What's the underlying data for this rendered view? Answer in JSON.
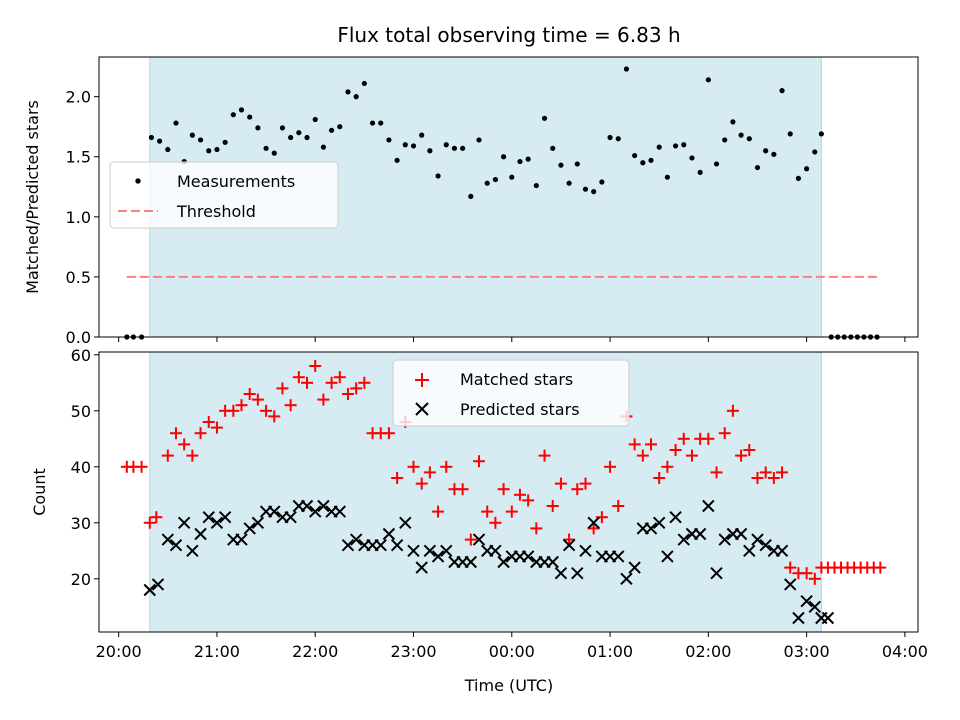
{
  "chart_data": [
    {
      "type": "scatter",
      "title": "Flux total observing time = 6.83 h",
      "xlabel": "",
      "ylabel": "Matched/Predicted stars",
      "xlim": [
        "19:48",
        "04:08"
      ],
      "ylim": [
        0,
        2.33
      ],
      "xticks": [
        "20:00",
        "21:00",
        "22:00",
        "23:00",
        "00:00",
        "01:00",
        "02:00",
        "03:00",
        "04:00"
      ],
      "yticks": [
        "0.0",
        "0.5",
        "1.0",
        "1.5",
        "2.0"
      ],
      "shaded_region": [
        "20:19",
        "03:09"
      ],
      "shade_color": "#add8e6",
      "threshold": {
        "value": 0.5,
        "from": "20:05",
        "to": "03:45",
        "color": "#ff7f7f"
      },
      "legend": {
        "position": "upper-left",
        "entries": [
          "Measurements",
          "Threshold"
        ]
      },
      "series": [
        {
          "name": "Measurements",
          "color": "#000000",
          "x": [
            "20:05",
            "20:09",
            "20:14",
            "20:20",
            "20:25",
            "20:30",
            "20:35",
            "20:40",
            "20:45",
            "20:50",
            "20:55",
            "21:00",
            "21:05",
            "21:10",
            "21:15",
            "21:20",
            "21:25",
            "21:30",
            "21:35",
            "21:40",
            "21:45",
            "21:50",
            "21:55",
            "22:00",
            "22:05",
            "22:10",
            "22:15",
            "22:20",
            "22:25",
            "22:30",
            "22:35",
            "22:40",
            "22:45",
            "22:50",
            "22:55",
            "23:00",
            "23:05",
            "23:10",
            "23:15",
            "23:20",
            "23:25",
            "23:30",
            "23:35",
            "23:40",
            "23:45",
            "23:50",
            "23:55",
            "00:00",
            "00:05",
            "00:10",
            "00:15",
            "00:20",
            "00:25",
            "00:30",
            "00:35",
            "00:40",
            "00:45",
            "00:50",
            "00:55",
            "01:00",
            "01:05",
            "01:10",
            "01:15",
            "01:20",
            "01:25",
            "01:30",
            "01:35",
            "01:40",
            "01:45",
            "01:50",
            "01:55",
            "02:00",
            "02:05",
            "02:10",
            "02:15",
            "02:20",
            "02:25",
            "02:30",
            "02:35",
            "02:40",
            "02:45",
            "02:50",
            "02:55",
            "03:00",
            "03:05",
            "03:09",
            "03:15",
            "03:19",
            "03:23",
            "03:27",
            "03:31",
            "03:35",
            "03:39",
            "03:43"
          ],
          "y": [
            0,
            0,
            0,
            1.66,
            1.63,
            1.56,
            1.78,
            1.46,
            1.68,
            1.64,
            1.55,
            1.56,
            1.62,
            1.85,
            1.89,
            1.83,
            1.74,
            1.57,
            1.53,
            1.74,
            1.66,
            1.7,
            1.66,
            1.81,
            1.58,
            1.72,
            1.75,
            2.04,
            2.0,
            2.11,
            1.78,
            1.78,
            1.64,
            1.47,
            1.6,
            1.59,
            1.68,
            1.55,
            1.34,
            1.6,
            1.57,
            1.57,
            1.17,
            1.64,
            1.28,
            1.31,
            1.5,
            1.33,
            1.46,
            1.48,
            1.26,
            1.82,
            1.57,
            1.43,
            1.28,
            1.44,
            1.23,
            1.21,
            1.29,
            1.66,
            1.65,
            2.23,
            1.51,
            1.45,
            1.47,
            1.58,
            1.33,
            1.59,
            1.6,
            1.49,
            1.37,
            2.14,
            1.44,
            1.64,
            1.79,
            1.68,
            1.65,
            1.41,
            1.55,
            1.52,
            2.05,
            1.69,
            1.32,
            1.4,
            1.54,
            1.69,
            0,
            0,
            0,
            0,
            0,
            0,
            0,
            0
          ]
        }
      ]
    },
    {
      "type": "scatter",
      "title": "",
      "xlabel": "Time (UTC)",
      "ylabel": "Count",
      "xlim": [
        "19:48",
        "04:08"
      ],
      "ylim": [
        10.5,
        60.5
      ],
      "xticks": [
        "20:00",
        "21:00",
        "22:00",
        "23:00",
        "00:00",
        "01:00",
        "02:00",
        "03:00",
        "04:00"
      ],
      "yticks": [
        "20",
        "30",
        "40",
        "50",
        "60"
      ],
      "shaded_region": [
        "20:19",
        "03:09"
      ],
      "shade_color": "#add8e6",
      "legend": {
        "position": "upper-center",
        "entries": [
          "Matched stars",
          "Predicted stars"
        ]
      },
      "series": [
        {
          "name": "Matched stars",
          "marker": "+",
          "color": "#ff0000",
          "x": [
            "20:05",
            "20:09",
            "20:14",
            "20:19",
            "20:23",
            "20:30",
            "20:35",
            "20:40",
            "20:45",
            "20:50",
            "20:55",
            "21:00",
            "21:05",
            "21:10",
            "21:15",
            "21:20",
            "21:25",
            "21:30",
            "21:35",
            "21:40",
            "21:45",
            "21:50",
            "21:55",
            "22:00",
            "22:05",
            "22:10",
            "22:15",
            "22:20",
            "22:25",
            "22:30",
            "22:35",
            "22:40",
            "22:45",
            "22:50",
            "22:55",
            "23:00",
            "23:05",
            "23:10",
            "23:15",
            "23:20",
            "23:25",
            "23:30",
            "23:35",
            "23:40",
            "23:45",
            "23:50",
            "23:55",
            "00:00",
            "00:05",
            "00:10",
            "00:15",
            "00:20",
            "00:25",
            "00:30",
            "00:35",
            "00:40",
            "00:45",
            "00:50",
            "00:55",
            "01:00",
            "01:05",
            "01:10",
            "01:15",
            "01:20",
            "01:25",
            "01:30",
            "01:35",
            "01:40",
            "01:45",
            "01:50",
            "01:55",
            "02:00",
            "02:05",
            "02:10",
            "02:15",
            "02:20",
            "02:25",
            "02:30",
            "02:35",
            "02:40",
            "02:45",
            "02:50",
            "02:55",
            "03:00",
            "03:05",
            "03:09",
            "03:13",
            "03:17",
            "03:21",
            "03:25",
            "03:29",
            "03:33",
            "03:37",
            "03:41",
            "03:45"
          ],
          "y": [
            40,
            40,
            40,
            30,
            31,
            42,
            46,
            44,
            42,
            46,
            48,
            47,
            50,
            50,
            51,
            53,
            52,
            50,
            49,
            54,
            51,
            56,
            55,
            58,
            52,
            55,
            56,
            53,
            54,
            55,
            46,
            46,
            46,
            38,
            48,
            40,
            37,
            39,
            32,
            40,
            36,
            36,
            27,
            41,
            32,
            30,
            36,
            32,
            35,
            34,
            29,
            42,
            33,
            37,
            27,
            36,
            37,
            29,
            31,
            40,
            33,
            49,
            44,
            42,
            44,
            38,
            40,
            43,
            45,
            42,
            45,
            45,
            39,
            46,
            50,
            42,
            43,
            38,
            39,
            38,
            39,
            22,
            21,
            21,
            20,
            22,
            22,
            22,
            22,
            22,
            22,
            22,
            22,
            22,
            22
          ]
        },
        {
          "name": "Predicted stars",
          "marker": "x",
          "color": "#000000",
          "x": [
            "20:19",
            "20:24",
            "20:30",
            "20:35",
            "20:40",
            "20:45",
            "20:50",
            "20:55",
            "21:00",
            "21:05",
            "21:10",
            "21:15",
            "21:20",
            "21:25",
            "21:30",
            "21:35",
            "21:40",
            "21:45",
            "21:50",
            "21:55",
            "22:00",
            "22:05",
            "22:10",
            "22:15",
            "22:20",
            "22:25",
            "22:30",
            "22:35",
            "22:40",
            "22:45",
            "22:50",
            "22:55",
            "23:00",
            "23:05",
            "23:10",
            "23:15",
            "23:20",
            "23:25",
            "23:30",
            "23:35",
            "23:40",
            "23:45",
            "23:50",
            "23:55",
            "00:00",
            "00:05",
            "00:10",
            "00:15",
            "00:20",
            "00:25",
            "00:30",
            "00:35",
            "00:40",
            "00:45",
            "00:50",
            "00:55",
            "01:00",
            "01:05",
            "01:10",
            "01:15",
            "01:20",
            "01:25",
            "01:30",
            "01:35",
            "01:40",
            "01:45",
            "01:50",
            "01:55",
            "02:00",
            "02:05",
            "02:10",
            "02:15",
            "02:20",
            "02:25",
            "02:30",
            "02:35",
            "02:40",
            "02:45",
            "02:50",
            "02:55",
            "03:00",
            "03:05",
            "03:09",
            "03:13"
          ],
          "y": [
            18,
            19,
            27,
            26,
            30,
            25,
            28,
            31,
            30,
            31,
            27,
            27,
            29,
            30,
            32,
            32,
            31,
            31,
            33,
            33,
            32,
            33,
            32,
            32,
            26,
            27,
            26,
            26,
            26,
            28,
            26,
            30,
            25,
            22,
            25,
            24,
            25,
            23,
            23,
            23,
            27,
            25,
            25,
            23,
            24,
            24,
            24,
            23,
            23,
            23,
            21,
            26,
            21,
            25,
            30,
            24,
            24,
            24,
            20,
            22,
            29,
            29,
            30,
            24,
            31,
            27,
            28,
            28,
            33,
            21,
            27,
            28,
            28,
            25,
            27,
            26,
            25,
            25,
            19,
            13,
            16,
            15,
            13,
            13
          ]
        }
      ]
    }
  ]
}
